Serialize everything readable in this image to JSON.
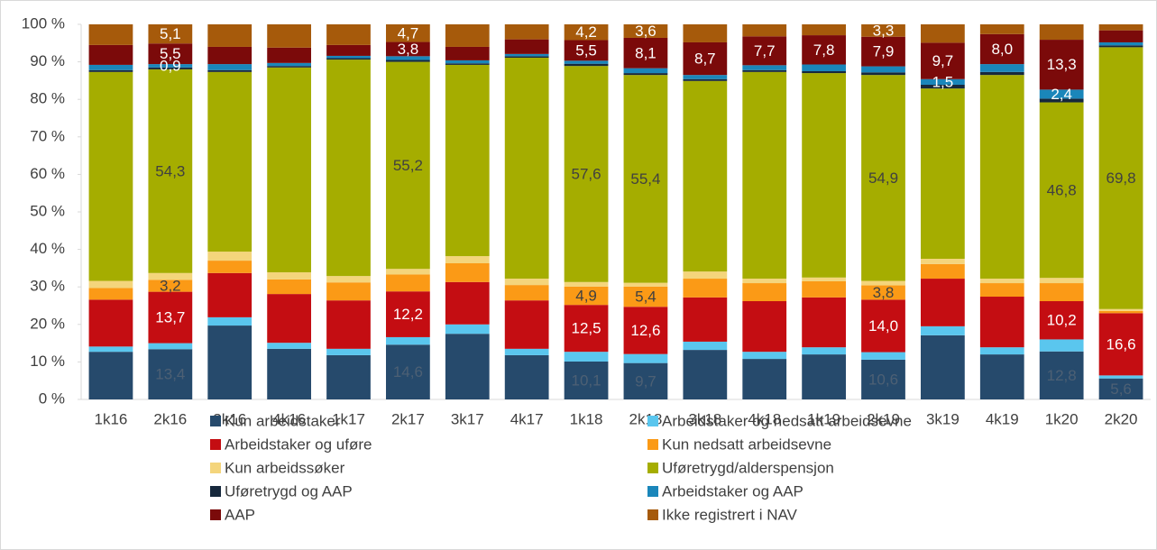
{
  "chart_data": {
    "type": "stacked_bar",
    "categories": [
      "1k16",
      "2k16",
      "3k16",
      "4k16",
      "1k17",
      "2k17",
      "3k17",
      "4k17",
      "1k18",
      "2k18",
      "3k18",
      "4k18",
      "1k19",
      "2k19",
      "3k19",
      "4k19",
      "1k20",
      "2k20"
    ],
    "ylim": [
      0,
      100
    ],
    "yticks": [
      {
        "value": 0,
        "label": "0 %"
      },
      {
        "value": 10,
        "label": "10 %"
      },
      {
        "value": 20,
        "label": "20 %"
      },
      {
        "value": 30,
        "label": "30 %"
      },
      {
        "value": 40,
        "label": "40 %"
      },
      {
        "value": 50,
        "label": "50 %"
      },
      {
        "value": 60,
        "label": "60 %"
      },
      {
        "value": 70,
        "label": "70 %"
      },
      {
        "value": 80,
        "label": "80 %"
      },
      {
        "value": 90,
        "label": "90 %"
      },
      {
        "value": 100,
        "label": "100 %"
      }
    ],
    "grid": false,
    "series": [
      {
        "name": "Kun arbeidstaker",
        "color": "#264a6c",
        "label_color": "#4d6074",
        "values": [
          12.7,
          13.4,
          19.7,
          13.5,
          11.8,
          14.6,
          17.5,
          11.8,
          10.1,
          9.7,
          13.2,
          10.8,
          12.0,
          10.6,
          17.1,
          12.0,
          12.8,
          5.6
        ],
        "value_labels": [
          null,
          "13,4",
          null,
          null,
          null,
          "14,6",
          null,
          null,
          "10,1",
          "9,7",
          null,
          null,
          null,
          "10,6",
          null,
          null,
          "12,8",
          "5,6"
        ]
      },
      {
        "name": "Arbeidstaker og nedsatt arbeidsevne",
        "color": "#5ac6ee",
        "values": [
          1.4,
          1.6,
          2.2,
          1.6,
          1.7,
          2.0,
          2.5,
          1.7,
          2.6,
          2.4,
          2.2,
          1.9,
          1.9,
          2.0,
          2.4,
          1.9,
          3.2,
          0.8
        ]
      },
      {
        "name": "Arbeidstaker og uføre",
        "color": "#c40d12",
        "label_color": "#ffffff",
        "values": [
          12.5,
          13.7,
          11.8,
          13.0,
          12.9,
          12.2,
          11.3,
          12.9,
          12.5,
          12.6,
          11.8,
          13.5,
          13.3,
          14.0,
          12.7,
          13.5,
          10.2,
          16.6
        ],
        "value_labels": [
          null,
          "13,7",
          null,
          null,
          null,
          "12,2",
          null,
          null,
          "12,5",
          "12,6",
          null,
          null,
          null,
          "14,0",
          null,
          null,
          "10,2",
          "16,6"
        ]
      },
      {
        "name": "Kun nedsatt arbeidsevne",
        "color": "#fb9a16",
        "label_color": "#404040",
        "values": [
          3.1,
          3.2,
          3.3,
          3.9,
          4.8,
          4.5,
          5.0,
          4.1,
          4.9,
          5.4,
          5.0,
          4.8,
          4.3,
          3.8,
          3.9,
          3.6,
          4.8,
          0.6
        ],
        "value_labels": [
          null,
          "3,2",
          null,
          null,
          null,
          null,
          null,
          null,
          "4,9",
          "5,4",
          null,
          null,
          null,
          "3,8",
          null,
          null,
          null,
          null
        ]
      },
      {
        "name": "Kun arbeidssøker",
        "color": "#f4d57c",
        "values": [
          1.9,
          1.8,
          2.4,
          1.9,
          1.7,
          1.5,
          1.9,
          1.7,
          1.2,
          1.0,
          1.9,
          1.2,
          1.0,
          1.2,
          1.4,
          1.2,
          1.4,
          0.5
        ]
      },
      {
        "name": "Uføretrygd/alderspensjon",
        "color": "#a5ad00",
        "label_color": "#404040",
        "values": [
          55.7,
          54.3,
          47.9,
          54.6,
          57.7,
          55.2,
          51.0,
          58.9,
          57.6,
          55.4,
          50.8,
          55.1,
          54.5,
          54.9,
          45.4,
          54.3,
          46.8,
          69.8
        ],
        "value_labels": [
          null,
          "54,3",
          null,
          null,
          null,
          "55,2",
          null,
          null,
          "57,6",
          "55,4",
          null,
          null,
          null,
          "54,9",
          null,
          null,
          "46,8",
          "69,8"
        ]
      },
      {
        "name": "Uføretrygd og AAP",
        "color": "#16283c",
        "values": [
          0.5,
          0.5,
          0.5,
          0.4,
          0.4,
          0.5,
          0.4,
          0.4,
          0.6,
          0.5,
          0.5,
          0.5,
          0.5,
          0.7,
          1.0,
          0.8,
          1.0,
          0.5
        ]
      },
      {
        "name": "Arbeidstaker og AAP",
        "color": "#1a86ba",
        "label_color": "#ffffff",
        "values": [
          1.4,
          0.9,
          1.6,
          0.8,
          0.6,
          1.0,
          0.8,
          0.6,
          0.8,
          1.3,
          1.1,
          1.3,
          1.8,
          1.6,
          1.5,
          2.1,
          2.4,
          0.8
        ],
        "value_labels": [
          null,
          "0,9",
          null,
          null,
          null,
          null,
          null,
          null,
          null,
          null,
          null,
          null,
          null,
          null,
          "1,5",
          null,
          "2,4",
          null
        ]
      },
      {
        "name": "AAP",
        "color": "#7b0a0a",
        "label_color": "#ffffff",
        "values": [
          5.3,
          5.5,
          4.6,
          4.1,
          2.9,
          3.8,
          3.6,
          3.9,
          5.5,
          8.1,
          8.7,
          7.7,
          7.8,
          7.9,
          9.7,
          8.0,
          13.3,
          3.2
        ],
        "value_labels": [
          null,
          "5,5",
          null,
          null,
          null,
          "3,8",
          null,
          null,
          "5,5",
          "8,1",
          "8,7",
          "7,7",
          "7,8",
          "7,9",
          "9,7",
          "8,0",
          "13,3",
          null
        ]
      },
      {
        "name": "Ikke registrert i NAV",
        "color": "#a65a0b",
        "label_color": "#ffffff",
        "values": [
          5.5,
          5.1,
          6.0,
          6.2,
          5.5,
          4.7,
          6.0,
          4.0,
          4.2,
          3.6,
          4.8,
          3.2,
          2.9,
          3.3,
          4.9,
          2.6,
          4.1,
          1.6
        ],
        "value_labels": [
          null,
          "5,1",
          null,
          null,
          null,
          "4,7",
          null,
          null,
          "4,2",
          "3,6",
          null,
          null,
          null,
          "3,3",
          null,
          null,
          null,
          null
        ]
      }
    ]
  }
}
